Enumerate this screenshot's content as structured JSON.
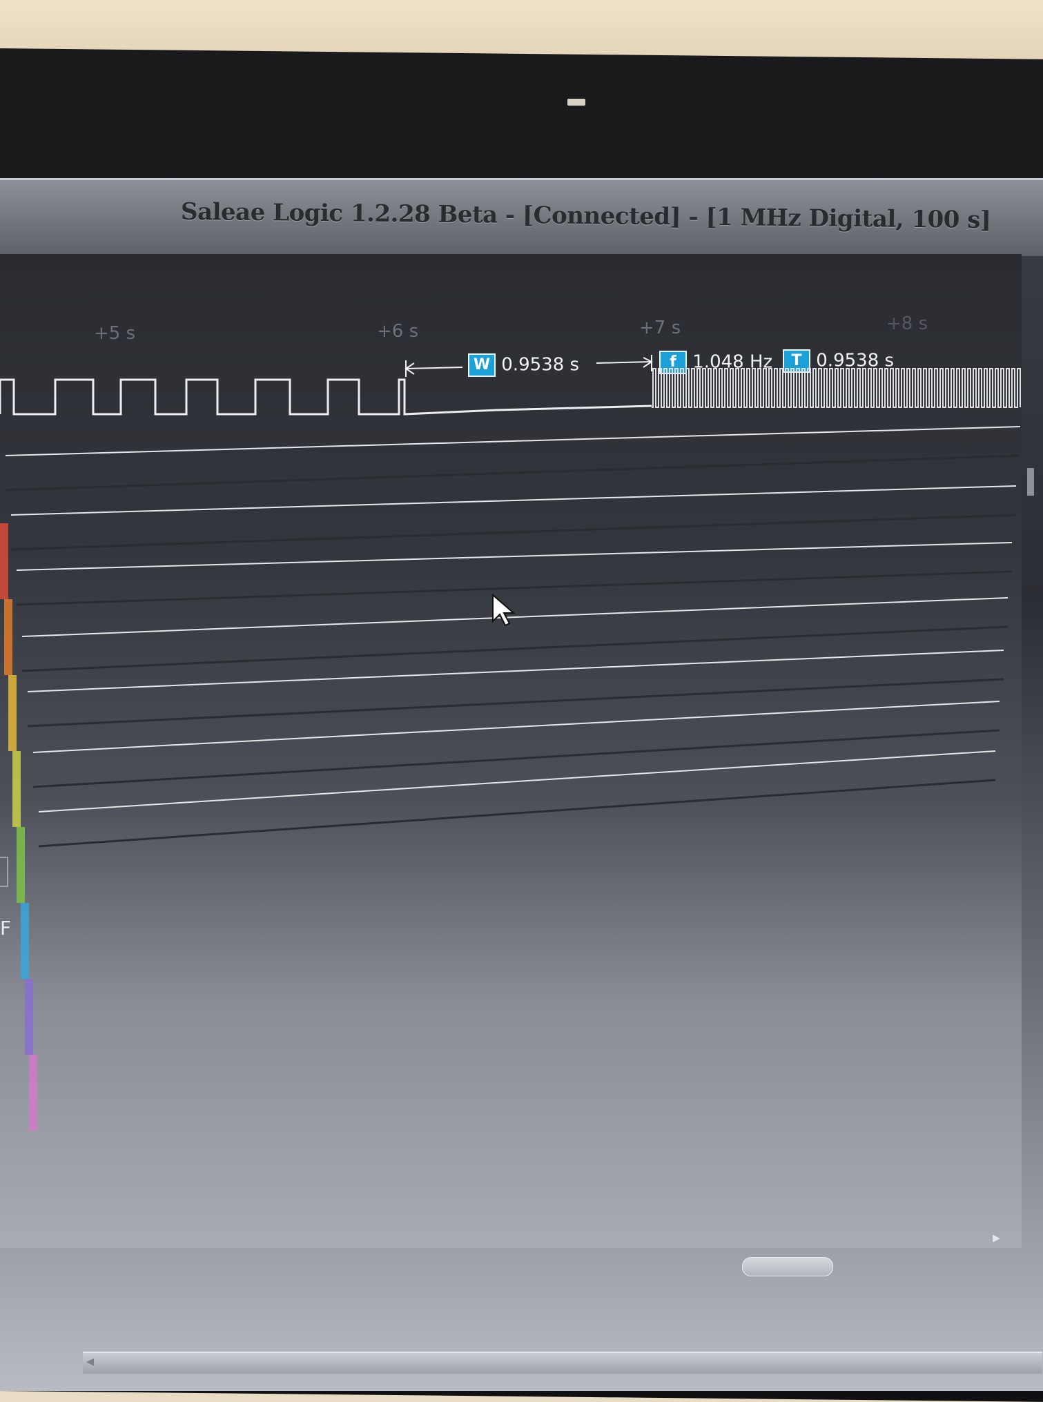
{
  "window": {
    "title": "Saleae Logic 1.2.28 Beta - [Connected] - [1 MHz Digital, 100 s]"
  },
  "timeline": {
    "ticks": [
      {
        "label": "+5 s"
      },
      {
        "label": "+6 s"
      },
      {
        "label": "+7 s"
      },
      {
        "label": "+8 s"
      }
    ]
  },
  "measurements": {
    "width": {
      "badge": "W",
      "value": "0.9538 s"
    },
    "frequency": {
      "badge": "f",
      "value": "1.048 Hz"
    },
    "period": {
      "badge": "T",
      "value": "0.9538 s"
    }
  },
  "channels": {
    "count": 8,
    "colors": [
      "#d94a3a",
      "#e07a2e",
      "#e5b93a",
      "#c9d24a",
      "#7fc24a",
      "#3aa6d8",
      "#8a6fd0",
      "#d07ac8"
    ]
  },
  "partial_labels": {
    "channel_7": "F"
  }
}
